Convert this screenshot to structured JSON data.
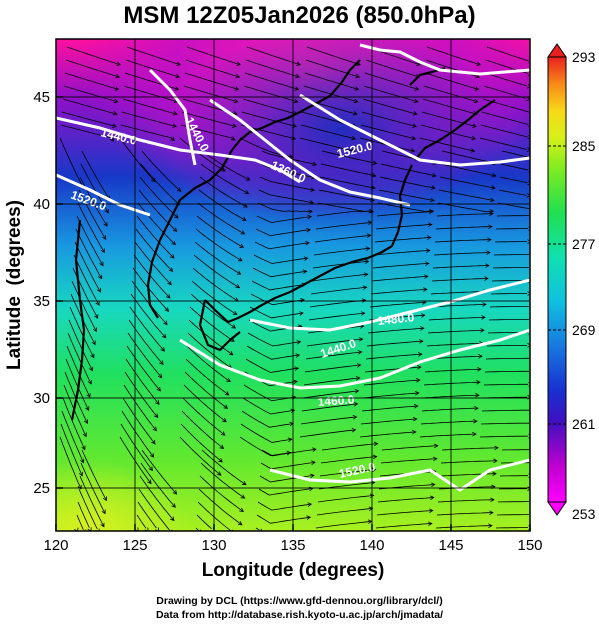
{
  "title": "MSM 12Z05Jan2026 (850.0hPa)",
  "axes": {
    "xlabel": "Longitude (degrees)",
    "ylabel": "Latitude  (degrees)",
    "xlim": [
      120,
      150
    ],
    "ylim": [
      22.5,
      48
    ],
    "xticks": [
      120,
      125,
      130,
      135,
      140,
      145,
      150
    ],
    "yticks": [
      25,
      30,
      35,
      40,
      45
    ],
    "grid": true
  },
  "colorbar": {
    "min": 253,
    "max": 293,
    "ticks": [
      "293",
      "285",
      "277",
      "269",
      "261",
      "253"
    ],
    "colors": [
      "#ff1493",
      "#ff00ff",
      "#b000c8",
      "#5a10c0",
      "#1e3cd0",
      "#1e88e8",
      "#10d0d0",
      "#10e8a0",
      "#30e040",
      "#a8f020",
      "#e8e818",
      "#f8b818",
      "#f86418",
      "#e81818"
    ]
  },
  "contour_labels": [
    "1440.0",
    "1520.0",
    "1360.0",
    "1440.0",
    "1520.0",
    "1480.0",
    "1440.0",
    "1460.0",
    "1520.0"
  ],
  "credits": [
    "Drawing by DCL (https://www.gfd-dennou.org/library/dcl/)",
    "Data from http://database.rish.kyoto-u.ac.jp/arch/jmadata/"
  ]
}
